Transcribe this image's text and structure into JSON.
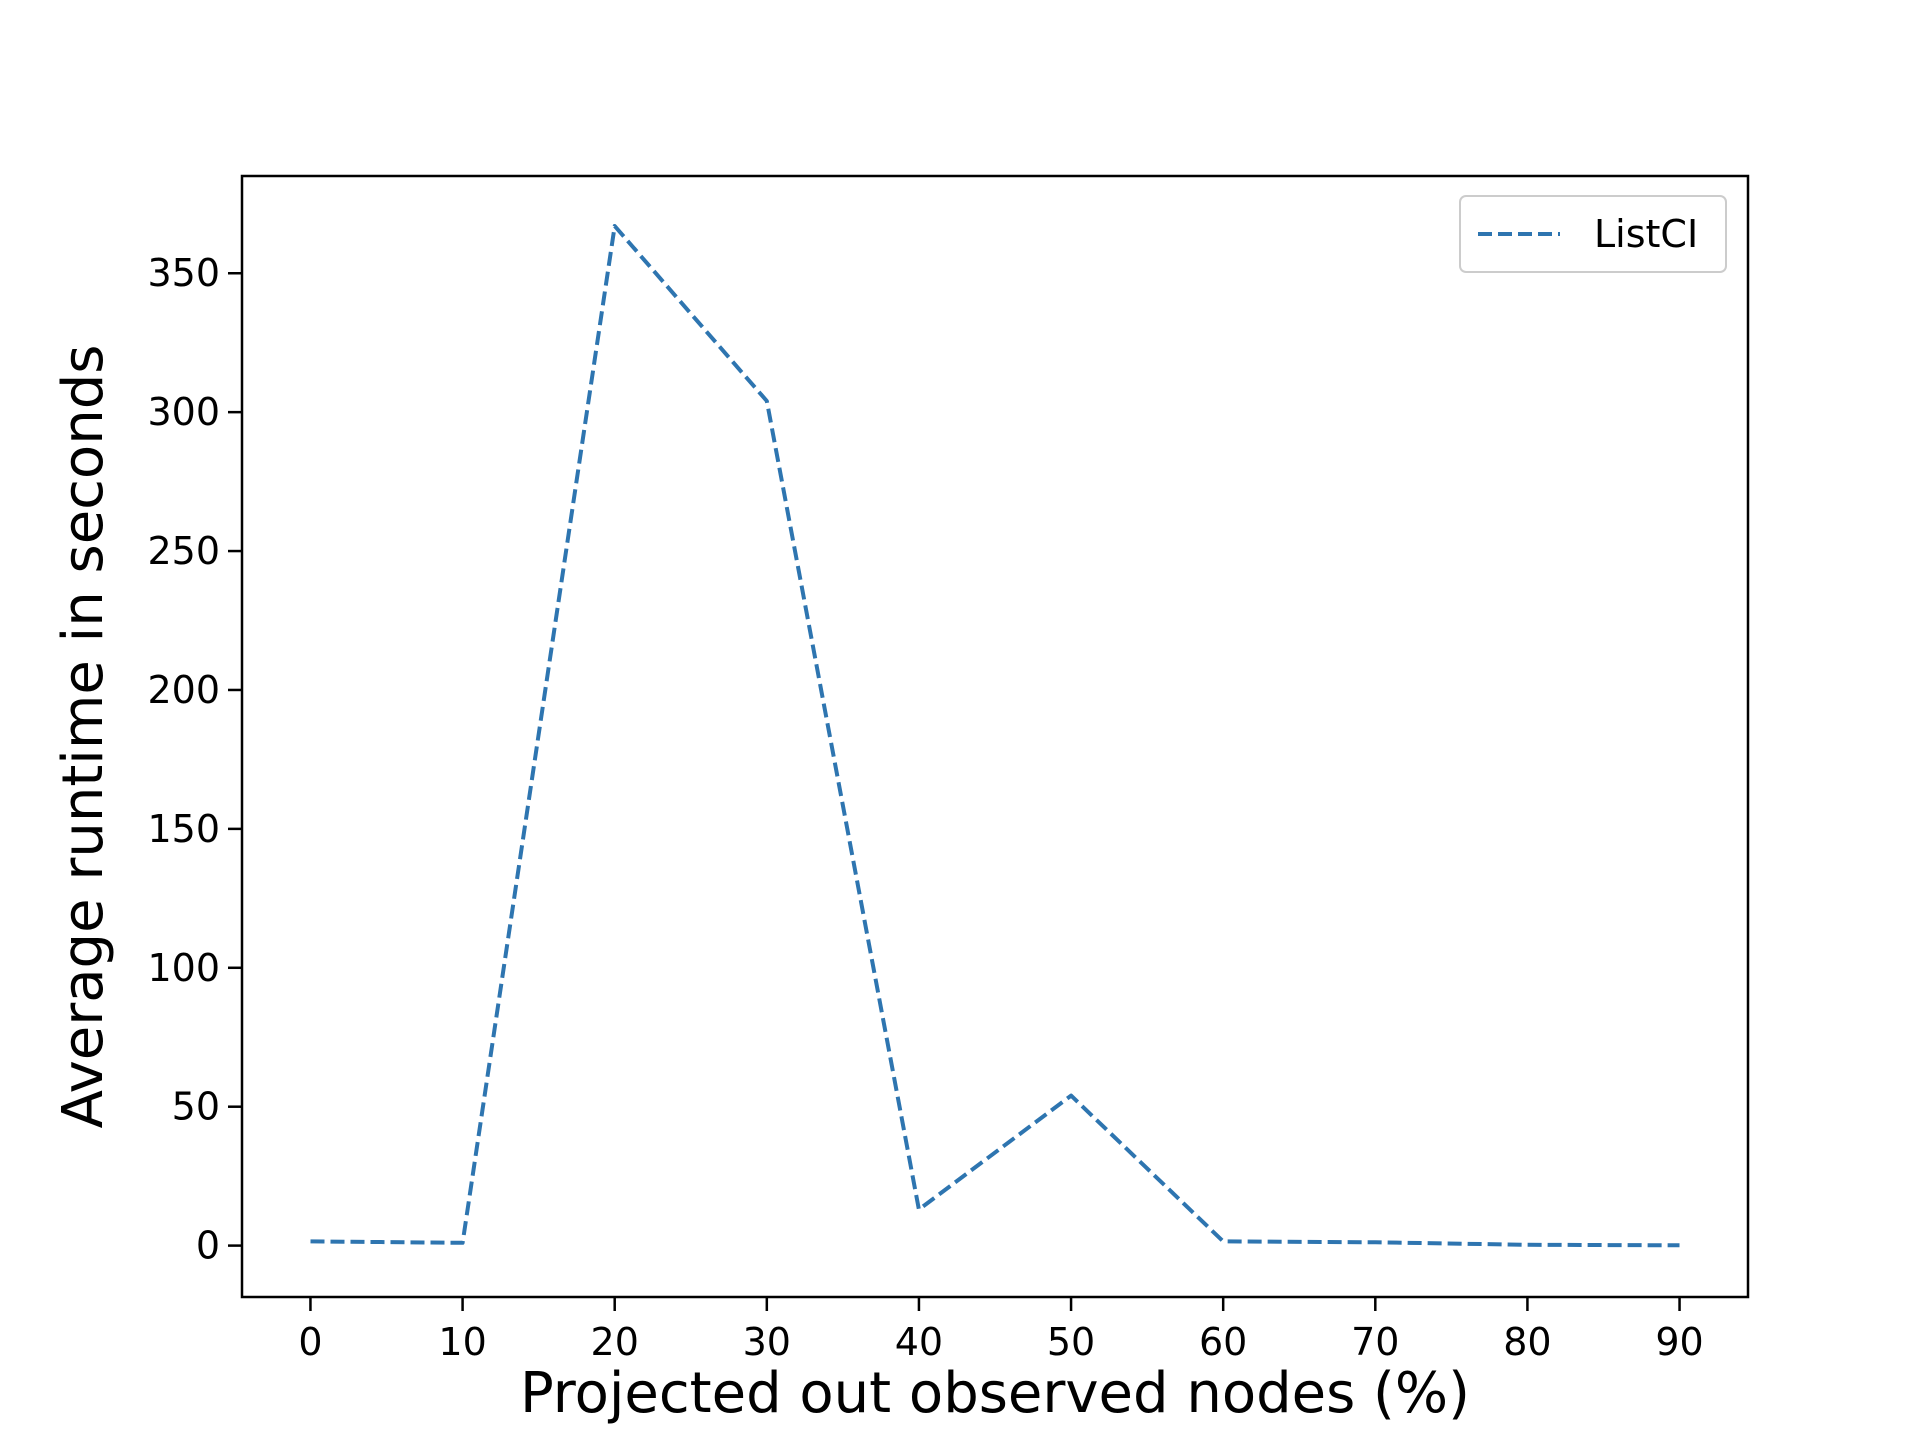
{
  "chart_data": {
    "type": "line",
    "title": "",
    "xlabel": "Projected out observed nodes (%)",
    "ylabel": "Average runtime in seconds",
    "x": [
      0,
      10,
      20,
      30,
      40,
      50,
      60,
      70,
      80,
      90
    ],
    "xticks": [
      "0",
      "10",
      "20",
      "30",
      "40",
      "50",
      "60",
      "70",
      "80",
      "90"
    ],
    "yticks": [
      "0",
      "50",
      "100",
      "150",
      "200",
      "250",
      "300",
      "350"
    ],
    "ytick_values": [
      0,
      50,
      100,
      150,
      200,
      250,
      300,
      350
    ],
    "xlim": [
      -4.5,
      94.5
    ],
    "ylim": [
      -18.5,
      385
    ],
    "grid": false,
    "legend_position": "top-right",
    "series": [
      {
        "name": "ListCI",
        "color": "#2e75b0",
        "line_style": "dashed",
        "values": [
          1.5,
          1.0,
          367,
          304,
          13,
          54,
          1.5,
          1.2,
          0.3,
          0.1
        ]
      }
    ]
  }
}
